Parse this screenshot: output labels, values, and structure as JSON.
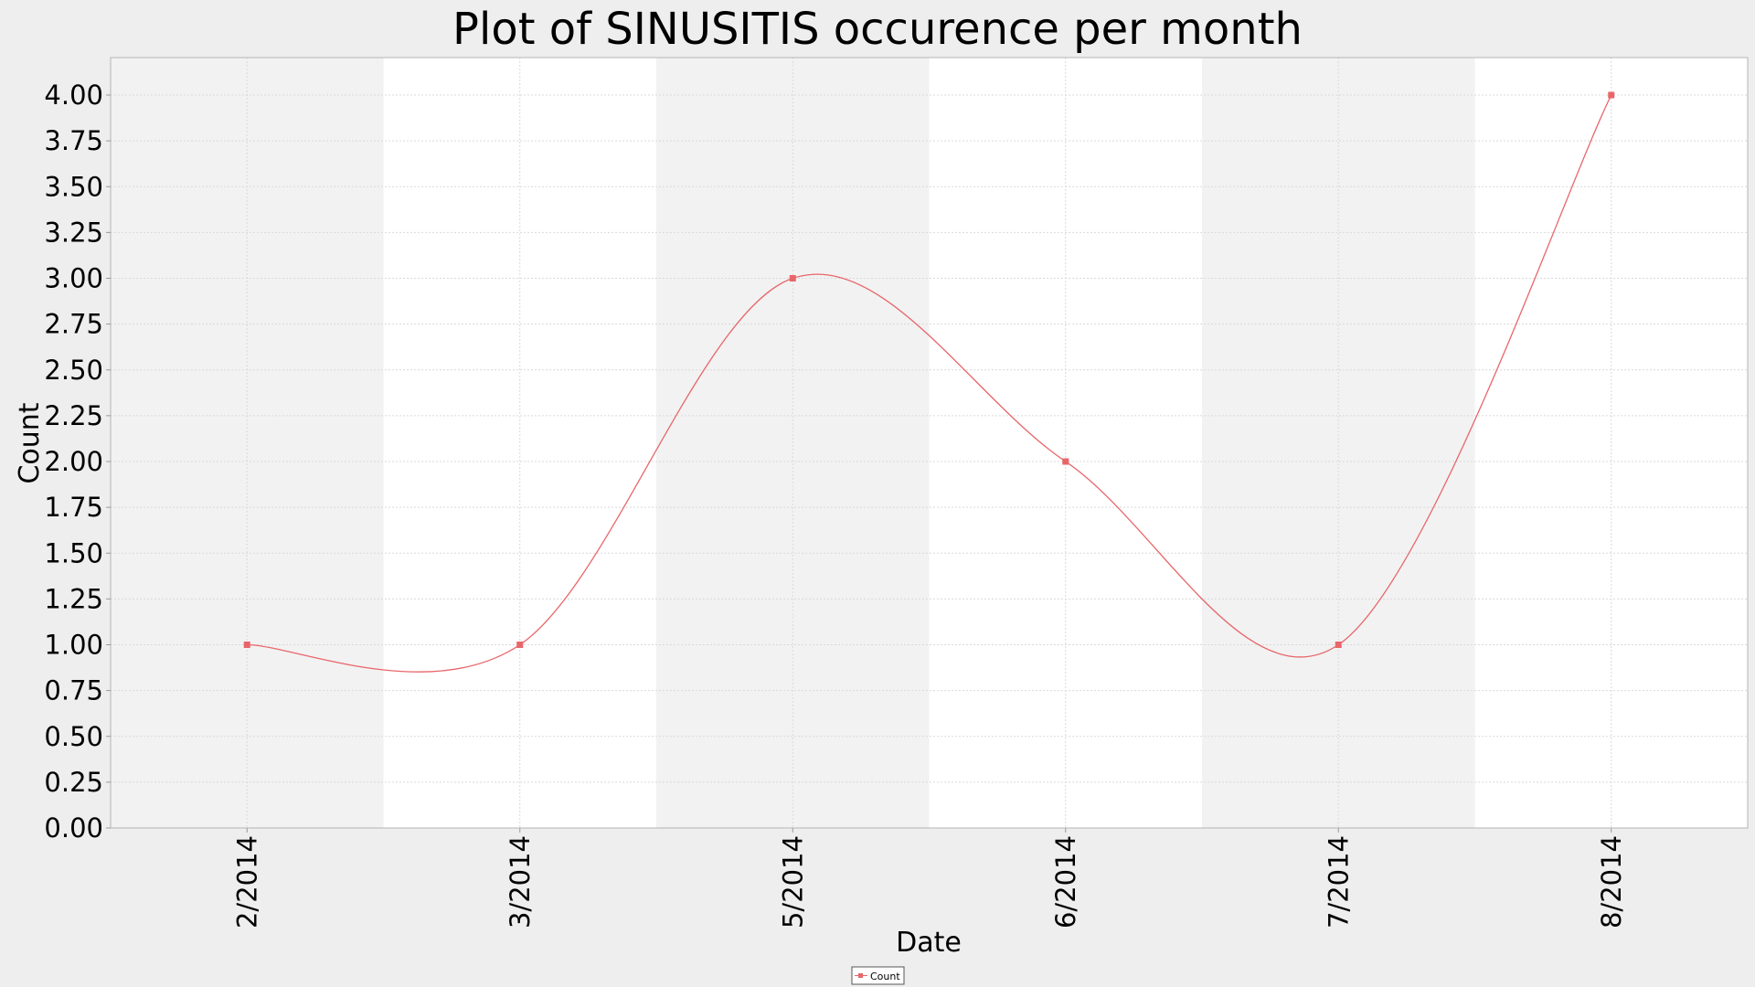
{
  "chart_data": {
    "type": "line",
    "title": "Plot of SINUSITIS occurence per month",
    "xlabel": "Date",
    "ylabel": "Count",
    "categories": [
      "2/2014",
      "3/2014",
      "5/2014",
      "6/2014",
      "7/2014",
      "8/2014"
    ],
    "series": [
      {
        "name": "Count",
        "values": [
          1,
          1,
          3,
          2,
          1,
          4
        ],
        "color": "#e8666a"
      }
    ],
    "ylim": [
      0,
      4
    ],
    "yticks": [
      "0.00",
      "0.25",
      "0.50",
      "0.75",
      "1.00",
      "1.25",
      "1.50",
      "1.75",
      "2.00",
      "2.25",
      "2.50",
      "2.75",
      "3.00",
      "3.25",
      "3.50",
      "3.75",
      "4.00"
    ],
    "x_tick_rotation": "vertical",
    "grid": true,
    "alternating_bands": true,
    "line_style": "smooth",
    "legend_position": "bottom-center"
  },
  "colors": {
    "page_background": "#eeeeee",
    "plot_background": "#ffffff",
    "band_shade": "#f2f2f2",
    "gridline": "#d9d9d9",
    "axis": "#999999"
  }
}
